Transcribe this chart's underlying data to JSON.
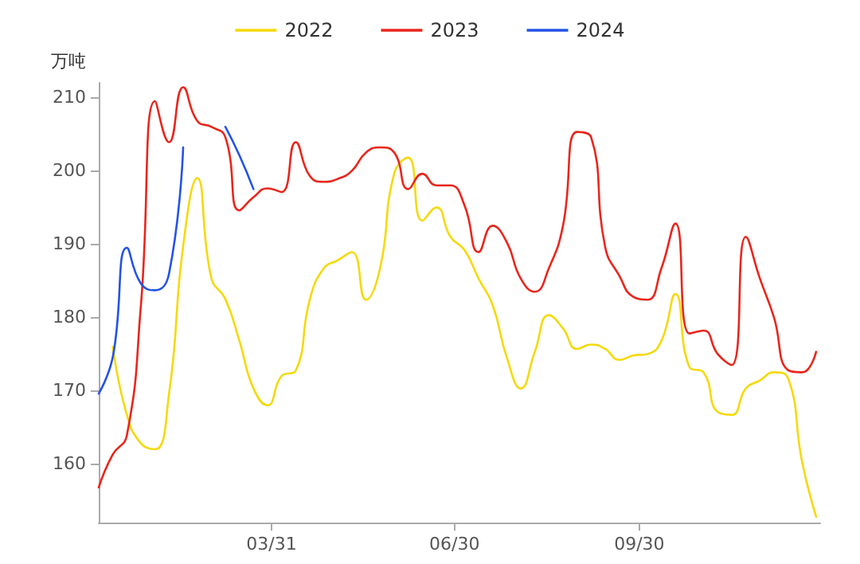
{
  "chart_data": {
    "type": "line",
    "ylabel": "万吨",
    "x": [
      "--01-04",
      "--01-11",
      "--01-18",
      "--01-25",
      "--02-01",
      "--02-08",
      "--02-15",
      "--02-22",
      "--03-01",
      "--03-08",
      "--03-15",
      "--03-22",
      "--03-29",
      "--04-05",
      "--04-12",
      "--04-19",
      "--04-26",
      "--05-03",
      "--05-10",
      "--05-17",
      "--05-24",
      "--05-31",
      "--06-07",
      "--06-14",
      "--06-21",
      "--06-28",
      "--07-05",
      "--07-12",
      "--07-19",
      "--07-26",
      "--08-02",
      "--08-09",
      "--08-16",
      "--08-23",
      "--08-30",
      "--09-06",
      "--09-13",
      "--09-20",
      "--09-27",
      "--10-04",
      "--10-11",
      "--10-18",
      "--10-25",
      "--11-01",
      "--11-08",
      "--11-15",
      "--11-22",
      "--11-29",
      "--12-06",
      "--12-13",
      "--12-20",
      "--12-27"
    ],
    "series": [
      {
        "name": "2022",
        "color": "#f5d90a",
        "values": [
          null,
          176,
          166.7,
          162.8,
          162,
          169.6,
          189.7,
          199,
          185.4,
          182.5,
          176.8,
          170.3,
          168,
          172,
          172.7,
          182.4,
          186.7,
          187.8,
          188.9,
          182.4,
          186.7,
          199.6,
          201.8,
          193.2,
          195,
          191,
          189.2,
          185.3,
          181.7,
          174.6,
          170.3,
          175.3,
          180.3,
          178.5,
          175.7,
          176.3,
          175.7,
          174.2,
          174.8,
          175,
          176.8,
          183.2,
          173.2,
          172.5,
          167.1,
          166.7,
          170.3,
          171.4,
          172.5,
          171.7,
          160.3,
          152.8
        ]
      },
      {
        "name": "2023",
        "color": "#e8261c",
        "values": [
          156.8,
          161.3,
          163.9,
          181.7,
          209.5,
          203.9,
          211.4,
          206.8,
          206,
          204.6,
          194.6,
          196.4,
          197.6,
          197.1,
          203.9,
          199.3,
          198.5,
          198.9,
          200,
          202.5,
          203.2,
          202.5,
          197.5,
          199.6,
          198,
          198,
          195.3,
          188.9,
          192.5,
          190.3,
          185.3,
          183.5,
          186.7,
          192.5,
          205.3,
          204.6,
          189.6,
          185.7,
          182.8,
          182.4,
          186.7,
          192.8,
          177.8,
          178.2,
          175,
          173.5,
          191,
          185.3,
          180,
          172.8,
          172.5,
          175.3
        ]
      },
      {
        "name": "2024",
        "color": "#2453e6",
        "values": [
          169.6,
          174.6,
          189.5,
          184.6,
          183.7,
          186,
          203.2,
          null,
          null,
          206,
          202.1,
          197.5,
          null,
          null,
          null,
          null,
          null,
          null,
          null,
          null,
          null,
          null,
          null,
          null,
          null,
          null,
          null,
          null,
          null,
          null,
          null,
          null,
          null,
          null,
          null,
          null,
          null,
          null,
          null,
          null,
          null,
          null,
          null,
          null,
          null,
          null,
          null,
          null,
          null,
          null,
          null,
          null
        ]
      }
    ],
    "xlim": [
      "--01-04",
      "--12-29"
    ],
    "xticks": [
      {
        "value": "--03-31",
        "label": "03/31"
      },
      {
        "value": "--06-30",
        "label": "06/30"
      },
      {
        "value": "--09-30",
        "label": "09/30"
      }
    ],
    "ylim": [
      152,
      212
    ],
    "yticks": [
      160,
      170,
      180,
      190,
      200,
      210
    ],
    "grid": false,
    "legend": "top",
    "marker": "none",
    "line_style": "solid"
  }
}
